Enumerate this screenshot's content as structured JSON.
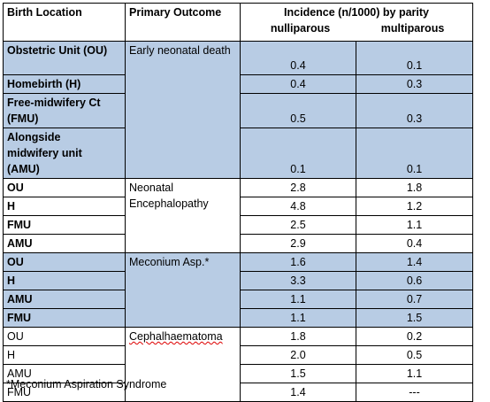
{
  "header": {
    "birth_location": "Birth Location",
    "primary_outcome": "Primary Outcome",
    "incidence": "Incidence (n/1000)  by parity",
    "nulliparous": "nulliparous",
    "multiparous": "multiparous"
  },
  "groups": [
    {
      "outcome": "Early neonatal death",
      "rows": [
        {
          "location": "Obstetric Unit (OU)",
          "nulliparous": "0.4",
          "multiparous": "0.1"
        },
        {
          "location": "Homebirth (H)",
          "nulliparous": "0.4",
          "multiparous": "0.3"
        },
        {
          "location": "Free-midwifery Ct (FMU)",
          "nulliparous": "0.5",
          "multiparous": "0.3"
        },
        {
          "location": "Alongside midwifery unit (AMU)",
          "nulliparous": "0.1",
          "multiparous": "0.1"
        }
      ]
    },
    {
      "outcome": "Neonatal Encephalopathy",
      "rows": [
        {
          "location": "OU",
          "nulliparous": "2.8",
          "multiparous": "1.8"
        },
        {
          "location": "H",
          "nulliparous": "4.8",
          "multiparous": "1.2"
        },
        {
          "location": "FMU",
          "nulliparous": "2.5",
          "multiparous": "1.1"
        },
        {
          "location": "AMU",
          "nulliparous": "2.9",
          "multiparous": "0.4"
        }
      ]
    },
    {
      "outcome": "Meconium Asp.*",
      "rows": [
        {
          "location": "OU",
          "nulliparous": "1.6",
          "multiparous": "1.4"
        },
        {
          "location": "H",
          "nulliparous": "3.3",
          "multiparous": "0.6"
        },
        {
          "location": "AMU",
          "nulliparous": "1.1",
          "multiparous": "0.7"
        },
        {
          "location": "FMU",
          "nulliparous": "1.1",
          "multiparous": "1.5"
        }
      ]
    },
    {
      "outcome": "Cephalhaematoma",
      "rows": [
        {
          "location": "OU",
          "nulliparous": "1.8",
          "multiparous": "0.2"
        },
        {
          "location": "H",
          "nulliparous": "2.0",
          "multiparous": "0.5"
        },
        {
          "location": "AMU",
          "nulliparous": "1.5",
          "multiparous": "1.1"
        },
        {
          "location": "FMU",
          "nulliparous": "1.4",
          "multiparous": "---"
        }
      ]
    }
  ],
  "footnote": "*Meconium Aspiration Syndrome"
}
